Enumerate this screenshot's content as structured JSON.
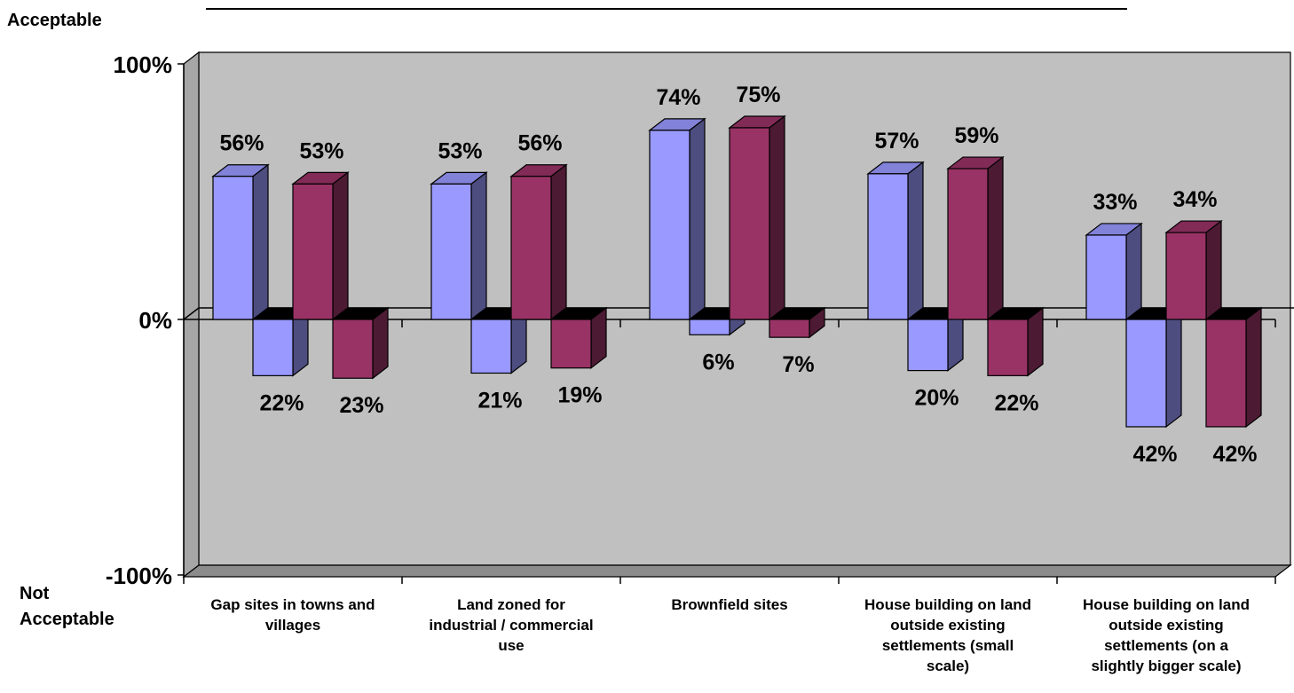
{
  "chart_data": {
    "type": "bar",
    "categories": [
      [
        "Gap sites in towns and",
        "villages"
      ],
      [
        "Land zoned for",
        "industrial / commercial",
        "use"
      ],
      [
        "Brownfield sites"
      ],
      [
        "House building on land",
        "outside existing",
        "settlements (small",
        "scale)"
      ],
      [
        "House building on land",
        "outside existing",
        "settlements (on a",
        "slightly bigger scale)"
      ]
    ],
    "series": [
      {
        "values": [
          56,
          53,
          74,
          57,
          33
        ],
        "color": "#9999ff"
      },
      {
        "values": [
          -22,
          -21,
          -6,
          -20,
          -42
        ],
        "color": "#9999ff"
      },
      {
        "values": [
          53,
          56,
          75,
          59,
          34
        ],
        "color": "#993366"
      },
      {
        "values": [
          -23,
          -19,
          -7,
          -22,
          -42
        ],
        "color": "#993366"
      }
    ],
    "data_labels": [
      [
        "56%",
        "22%",
        "53%",
        "23%"
      ],
      [
        "53%",
        "21%",
        "56%",
        "19%"
      ],
      [
        "74%",
        "6%",
        "75%",
        "7%"
      ],
      [
        "57%",
        "20%",
        "59%",
        "22%"
      ],
      [
        "33%",
        "42%",
        "34%",
        "42%"
      ]
    ],
    "yticks": [
      "100%",
      "0%",
      "-100%"
    ],
    "ylim": [
      -100,
      100
    ],
    "top_label": "Acceptable",
    "bottom_label": [
      "Not",
      "Acceptable"
    ],
    "grid": false,
    "style": "3d-clustered-bar",
    "plot_background": "#c0c0c0"
  }
}
